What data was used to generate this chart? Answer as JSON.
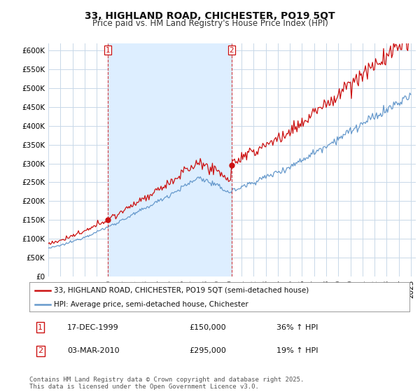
{
  "title": "33, HIGHLAND ROAD, CHICHESTER, PO19 5QT",
  "subtitle": "Price paid vs. HM Land Registry's House Price Index (HPI)",
  "ylim": [
    0,
    620000
  ],
  "yticks": [
    0,
    50000,
    100000,
    150000,
    200000,
    250000,
    300000,
    350000,
    400000,
    450000,
    500000,
    550000,
    600000
  ],
  "ytick_labels": [
    "£0",
    "£50K",
    "£100K",
    "£150K",
    "£200K",
    "£250K",
    "£300K",
    "£350K",
    "£400K",
    "£450K",
    "£500K",
    "£550K",
    "£600K"
  ],
  "background_color": "#ffffff",
  "grid_color": "#c8d8e8",
  "shade_color": "#ddeeff",
  "line1_color": "#cc1111",
  "line2_color": "#6699cc",
  "marker_color": "#cc1111",
  "vline_color": "#cc1111",
  "legend_label1": "33, HIGHLAND ROAD, CHICHESTER, PO19 5QT (semi-detached house)",
  "legend_label2": "HPI: Average price, semi-detached house, Chichester",
  "annotation1_price": 150000,
  "annotation1_text": "17-DEC-1999",
  "annotation1_pct": "36% ↑ HPI",
  "annotation2_price": 295000,
  "annotation2_text": "03-MAR-2010",
  "annotation2_pct": "19% ↑ HPI",
  "footer": "Contains HM Land Registry data © Crown copyright and database right 2025.\nThis data is licensed under the Open Government Licence v3.0.",
  "title_fontsize": 10,
  "subtitle_fontsize": 8.5,
  "tick_fontsize": 7.5,
  "legend_fontsize": 7.5,
  "annotation_fontsize": 8,
  "footer_fontsize": 6.5
}
